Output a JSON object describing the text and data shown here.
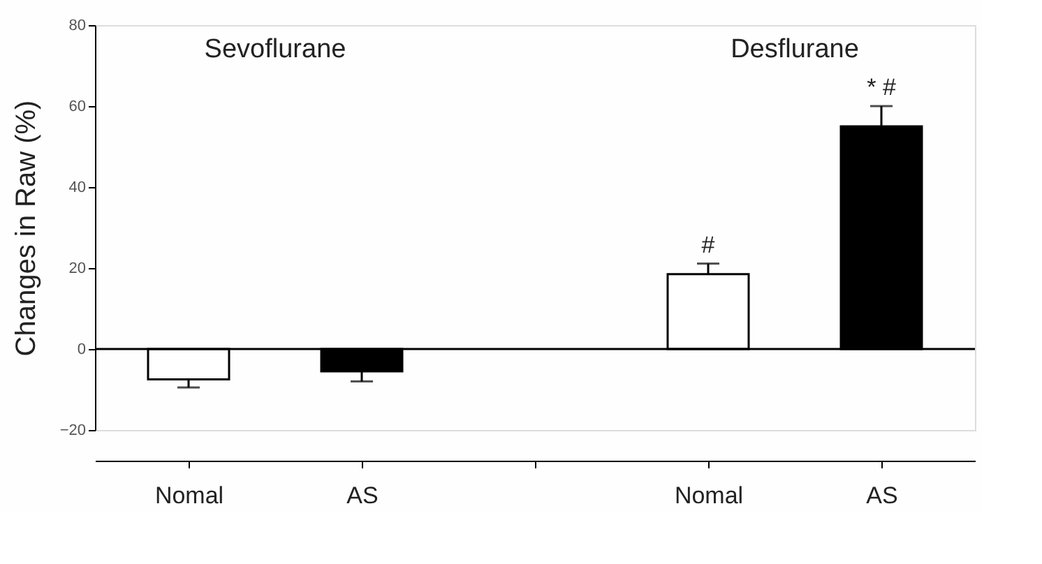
{
  "chart_data": {
    "type": "bar",
    "ylabel": "Changes in Raw (%)",
    "categories": [
      "Nomal",
      "AS",
      null,
      "Nomal",
      "AS"
    ],
    "values": [
      -7.5,
      -5.5,
      null,
      18.5,
      55
    ],
    "errors": [
      2,
      2.5,
      null,
      2.6,
      5
    ],
    "value_labels": [
      null,
      null,
      null,
      "#",
      "* #"
    ],
    "colors": [
      "#ffffff",
      "#000000",
      "#ffffff",
      "#ffffff",
      "#000000"
    ],
    "ylim": [
      -20,
      80
    ],
    "yticks": [
      -20,
      0,
      20,
      40,
      60,
      80
    ],
    "ref_lines": [
      {
        "axis": "y",
        "value": 0
      }
    ],
    "annotations": [
      "Sevoflurane",
      "Desflurane"
    ],
    "grid": false
  }
}
